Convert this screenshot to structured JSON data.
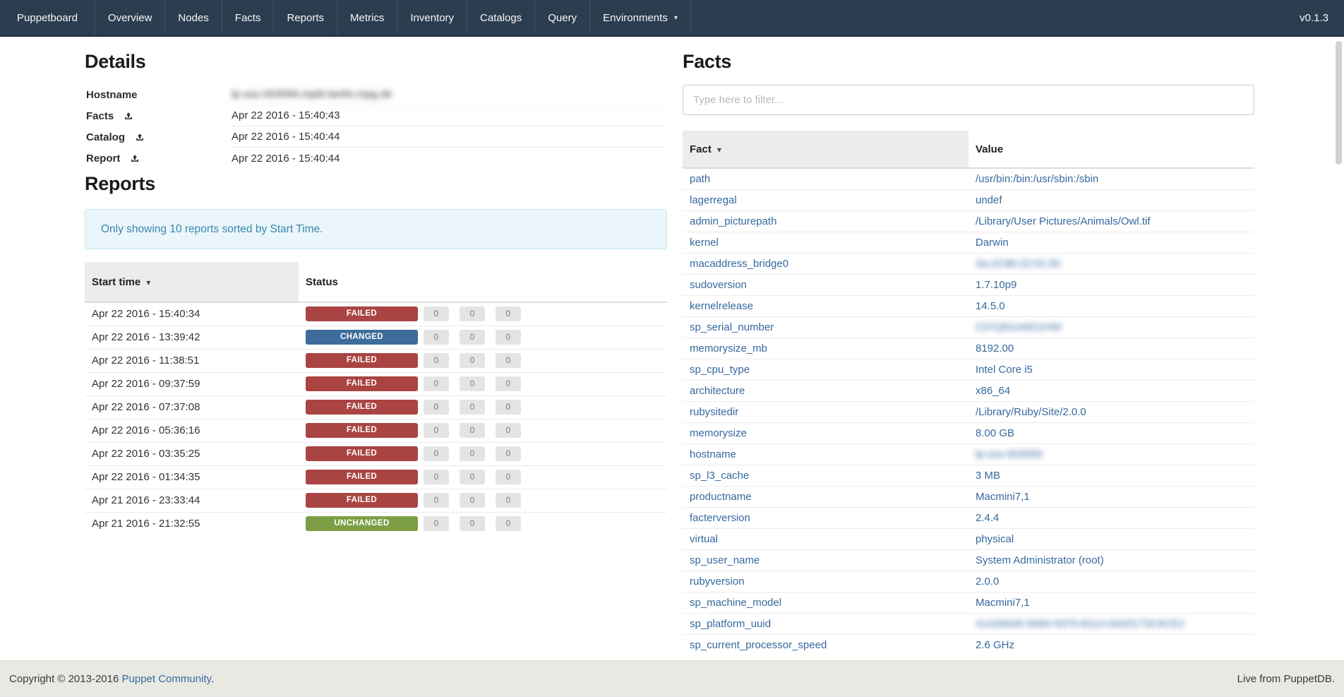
{
  "navbar": {
    "brand": "Puppetboard",
    "items": [
      "Overview",
      "Nodes",
      "Facts",
      "Reports",
      "Metrics",
      "Inventory",
      "Catalogs",
      "Query"
    ],
    "environments_label": "Environments",
    "version": "v0.1.3"
  },
  "icons": {
    "sort_caret": "▾",
    "dropdown_caret": "▾",
    "upload": "upload-icon"
  },
  "details": {
    "title": "Details",
    "rows": [
      {
        "label": "Hostname",
        "value": "lp-osx-003056.mpib-berlin.mpg.de",
        "blurred": true,
        "upload_icon": false
      },
      {
        "label": "Facts",
        "value": "Apr 22 2016 - 15:40:43",
        "blurred": false,
        "upload_icon": true
      },
      {
        "label": "Catalog",
        "value": "Apr 22 2016 - 15:40:44",
        "blurred": false,
        "upload_icon": true
      },
      {
        "label": "Report",
        "value": "Apr 22 2016 - 15:40:44",
        "blurred": false,
        "upload_icon": true
      }
    ]
  },
  "reports": {
    "title": "Reports",
    "notice": "Only showing 10 reports sorted by Start Time.",
    "columns": {
      "start_time": "Start time",
      "status": "Status"
    },
    "sorted_by": "start_time",
    "rows": [
      {
        "start_time": "Apr 22 2016 - 15:40:34",
        "status": "FAILED",
        "counts": [
          "0",
          "0",
          "0"
        ]
      },
      {
        "start_time": "Apr 22 2016 - 13:39:42",
        "status": "CHANGED",
        "counts": [
          "0",
          "0",
          "0"
        ]
      },
      {
        "start_time": "Apr 22 2016 - 11:38:51",
        "status": "FAILED",
        "counts": [
          "0",
          "0",
          "0"
        ]
      },
      {
        "start_time": "Apr 22 2016 - 09:37:59",
        "status": "FAILED",
        "counts": [
          "0",
          "0",
          "0"
        ]
      },
      {
        "start_time": "Apr 22 2016 - 07:37:08",
        "status": "FAILED",
        "counts": [
          "0",
          "0",
          "0"
        ]
      },
      {
        "start_time": "Apr 22 2016 - 05:36:16",
        "status": "FAILED",
        "counts": [
          "0",
          "0",
          "0"
        ]
      },
      {
        "start_time": "Apr 22 2016 - 03:35:25",
        "status": "FAILED",
        "counts": [
          "0",
          "0",
          "0"
        ]
      },
      {
        "start_time": "Apr 22 2016 - 01:34:35",
        "status": "FAILED",
        "counts": [
          "0",
          "0",
          "0"
        ]
      },
      {
        "start_time": "Apr 21 2016 - 23:33:44",
        "status": "FAILED",
        "counts": [
          "0",
          "0",
          "0"
        ]
      },
      {
        "start_time": "Apr 21 2016 - 21:32:55",
        "status": "UNCHANGED",
        "counts": [
          "0",
          "0",
          "0"
        ]
      }
    ]
  },
  "facts": {
    "title": "Facts",
    "filter_placeholder": "Type here to filter...",
    "columns": {
      "fact": "Fact",
      "value": "Value"
    },
    "sorted_by": "fact",
    "rows": [
      {
        "name": "path",
        "value": "/usr/bin:/bin:/usr/sbin:/sbin",
        "blurred": false
      },
      {
        "name": "lagerregal",
        "value": "undef",
        "blurred": false
      },
      {
        "name": "admin_picturepath",
        "value": "/Library/User Pictures/Animals/Owl.tif",
        "blurred": false
      },
      {
        "name": "kernel",
        "value": "Darwin",
        "blurred": false
      },
      {
        "name": "macaddress_bridge0",
        "value": "3a:c9:86:22:01:00",
        "blurred": true
      },
      {
        "name": "sudoversion",
        "value": "1.7.10p9",
        "blurred": false
      },
      {
        "name": "kernelrelease",
        "value": "14.5.0",
        "blurred": false
      },
      {
        "name": "sp_serial_number",
        "value": "C07QN1A6G1HW",
        "blurred": true
      },
      {
        "name": "memorysize_mb",
        "value": "8192.00",
        "blurred": false
      },
      {
        "name": "sp_cpu_type",
        "value": "Intel Core i5",
        "blurred": false
      },
      {
        "name": "architecture",
        "value": "x86_64",
        "blurred": false
      },
      {
        "name": "rubysitedir",
        "value": "/Library/Ruby/Site/2.0.0",
        "blurred": false
      },
      {
        "name": "memorysize",
        "value": "8.00 GB",
        "blurred": false
      },
      {
        "name": "hostname",
        "value": "lp-osx-003056",
        "blurred": true
      },
      {
        "name": "sp_l3_cache",
        "value": "3 MB",
        "blurred": false
      },
      {
        "name": "productname",
        "value": "Macmini7,1",
        "blurred": false
      },
      {
        "name": "facterversion",
        "value": "2.4.4",
        "blurred": false
      },
      {
        "name": "virtual",
        "value": "physical",
        "blurred": false
      },
      {
        "name": "sp_user_name",
        "value": "System Administrator (root)",
        "blurred": false
      },
      {
        "name": "rubyversion",
        "value": "2.0.0",
        "blurred": false
      },
      {
        "name": "sp_machine_model",
        "value": "Macmini7,1",
        "blurred": false
      },
      {
        "name": "sp_platform_uuid",
        "value": "41A00040-6084-5970-8114-0A03173C9CE2",
        "blurred": true
      },
      {
        "name": "sp_current_processor_speed",
        "value": "2.6 GHz",
        "blurred": false
      }
    ]
  },
  "footer": {
    "copyright_prefix": "Copyright © 2013-2016 ",
    "community_link": "Puppet Community",
    "copyright_suffix": ".",
    "live_text": "Live from PuppetDB."
  },
  "colors": {
    "navbar_bg": "#2b3e50",
    "link": "#36699e",
    "alert_bg": "#eaf6fb",
    "alert_text": "#3a87ad",
    "sorted_header_bg": "#ececec",
    "status": {
      "FAILED": "#a94442",
      "CHANGED": "#3e6d9c",
      "UNCHANGED": "#7c9f45"
    },
    "count_pill_bg": "#e4e4e4"
  }
}
